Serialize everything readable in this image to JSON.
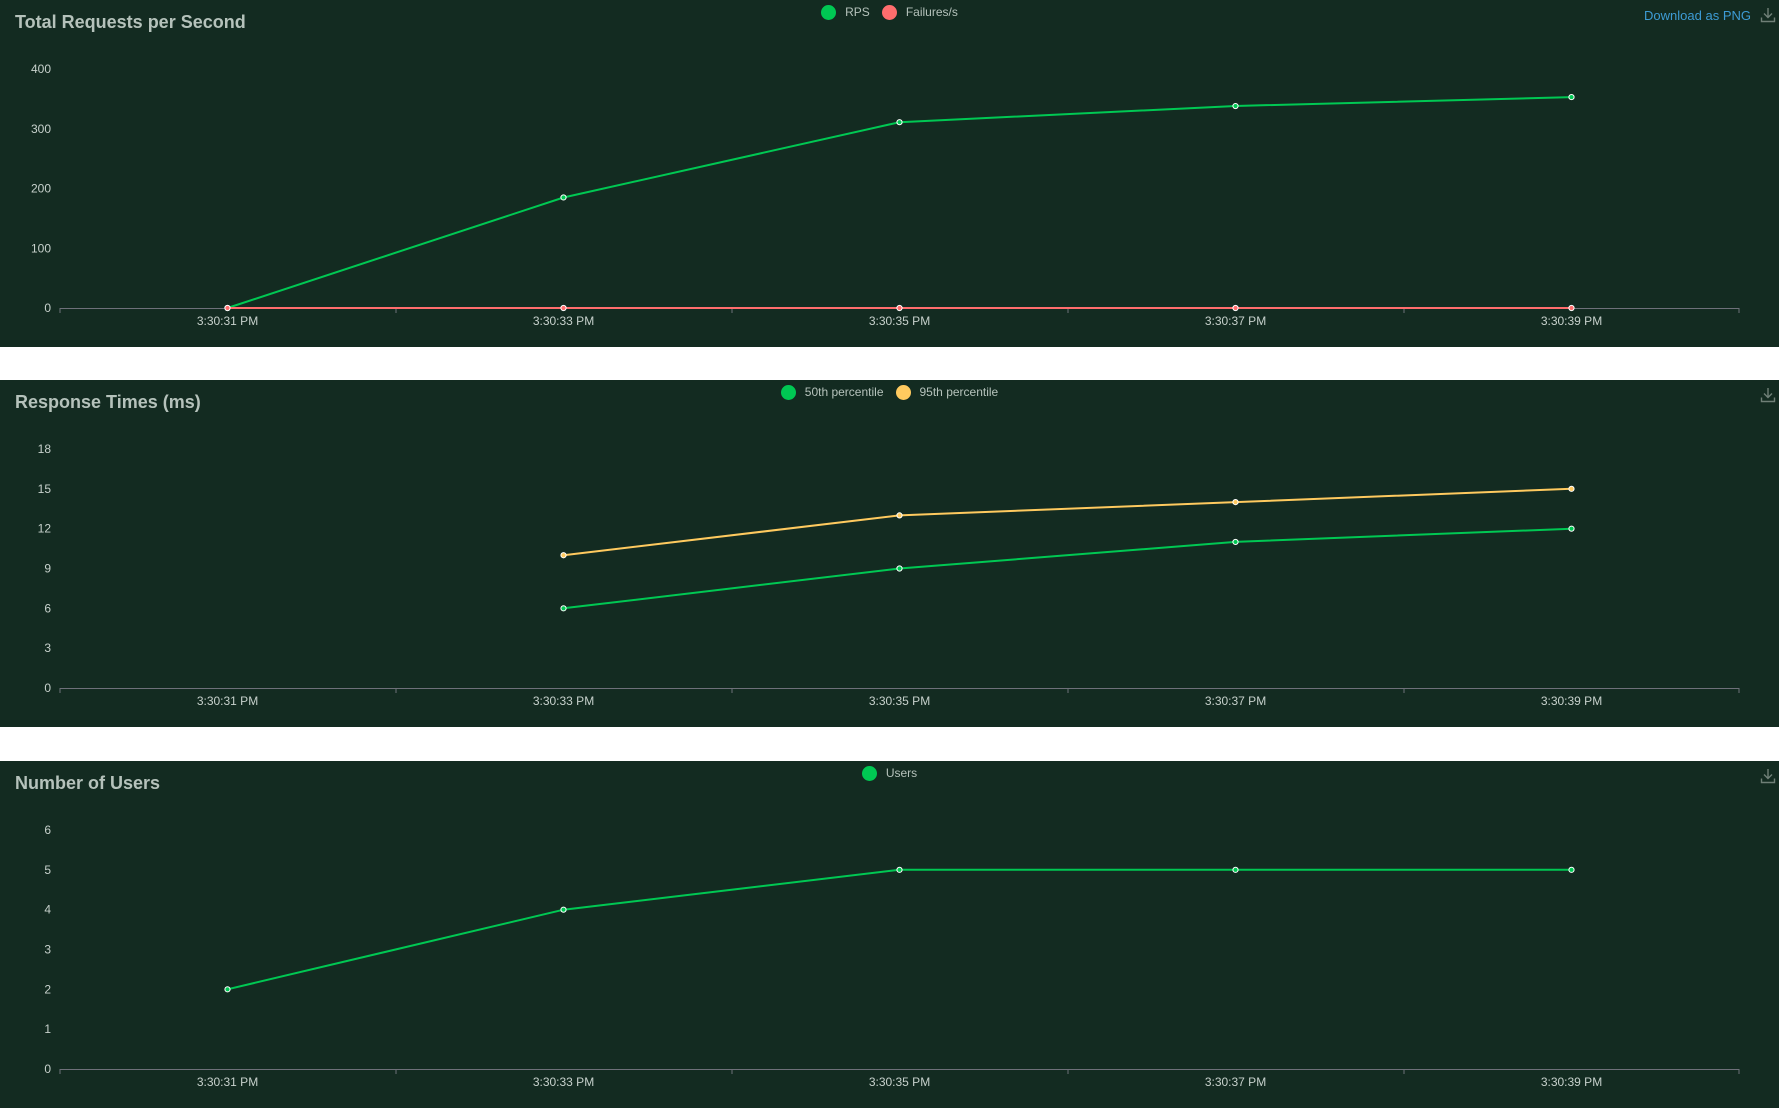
{
  "download": {
    "label": "Download as PNG",
    "icon": "download-icon"
  },
  "chart_data": [
    {
      "id": "rps",
      "type": "line",
      "title": "Total Requests per Second",
      "categories": [
        "3:30:31 PM",
        "3:30:33 PM",
        "3:30:35 PM",
        "3:30:37 PM",
        "3:30:39 PM"
      ],
      "yticks": [
        0,
        100,
        200,
        300,
        400
      ],
      "ylim": [
        0,
        400
      ],
      "grid": false,
      "legend": "top-center",
      "show_download_label": true,
      "series": [
        {
          "name": "RPS",
          "color": "#00c853",
          "values": [
            0,
            185,
            311,
            338,
            353
          ]
        },
        {
          "name": "Failures/s",
          "color": "#ff6d6d",
          "values": [
            0,
            0,
            0,
            0,
            0
          ]
        }
      ]
    },
    {
      "id": "response-times",
      "type": "line",
      "title": "Response Times (ms)",
      "categories": [
        "3:30:31 PM",
        "3:30:33 PM",
        "3:30:35 PM",
        "3:30:37 PM",
        "3:30:39 PM"
      ],
      "yticks": [
        0,
        3,
        6,
        9,
        12,
        15,
        18
      ],
      "ylim": [
        0,
        18
      ],
      "grid": false,
      "legend": "top-center",
      "show_download_label": false,
      "series": [
        {
          "name": "50th percentile",
          "color": "#00c853",
          "values": [
            null,
            6,
            9,
            11,
            12
          ]
        },
        {
          "name": "95th percentile",
          "color": "#ffca5f",
          "values": [
            null,
            10,
            13,
            14,
            15
          ]
        }
      ]
    },
    {
      "id": "users",
      "type": "line",
      "title": "Number of Users",
      "categories": [
        "3:30:31 PM",
        "3:30:33 PM",
        "3:30:35 PM",
        "3:30:37 PM",
        "3:30:39 PM"
      ],
      "yticks": [
        0,
        1,
        2,
        3,
        4,
        5,
        6
      ],
      "ylim": [
        0,
        6
      ],
      "grid": false,
      "legend": "top-center",
      "show_download_label": false,
      "series": [
        {
          "name": "Users",
          "color": "#00c853",
          "values": [
            2,
            4,
            5,
            5,
            5
          ]
        }
      ]
    }
  ]
}
